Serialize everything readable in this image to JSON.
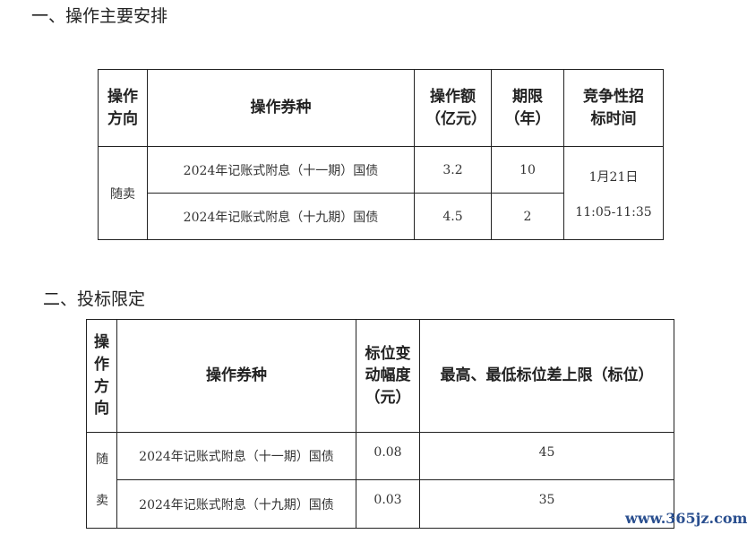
{
  "section1": {
    "heading": "一、操作主要安排",
    "headers": [
      "操作方向",
      "操作券种",
      "操作额（亿元）",
      "期限（年）",
      "竞争性招标时间"
    ],
    "direction": "随卖",
    "rows": [
      {
        "bond": "2024年记账式附息（十一期）国债",
        "amount": "3.2",
        "term": "10"
      },
      {
        "bond": "2024年记账式附息（十九期）国债",
        "amount": "4.5",
        "term": "2"
      }
    ],
    "time_date": "1月21日",
    "time_range": "11:05-11:35"
  },
  "section2": {
    "heading": "二、投标限定",
    "headers": [
      "操作方向",
      "操作券种",
      "标位变动幅度（元）",
      "最高、最低标位差上限（标位）"
    ],
    "direction": "随卖",
    "rows": [
      {
        "bond": "2024年记账式附息（十一期）国债",
        "change": "0.08",
        "limit": "45"
      },
      {
        "bond": "2024年记账式附息（十九期）国债",
        "change": "0.03",
        "limit": "35"
      }
    ]
  },
  "watermark": "www.365jz.com"
}
